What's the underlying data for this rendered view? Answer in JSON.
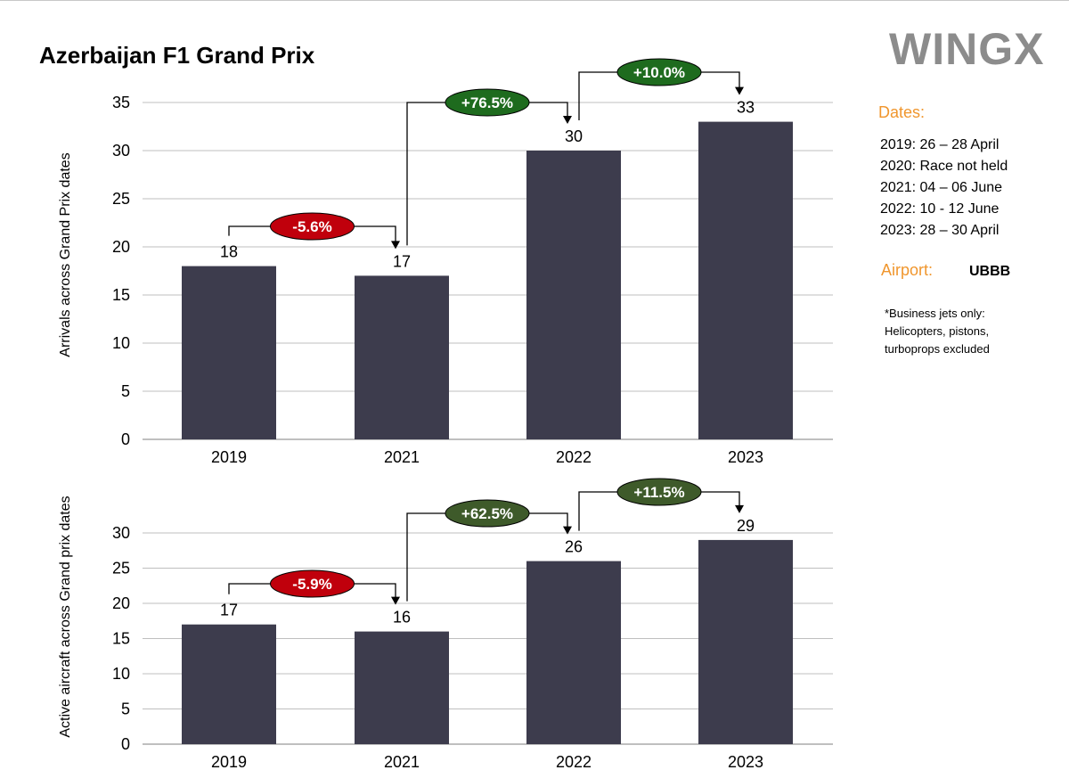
{
  "title": "Azerbaijan F1 Grand Prix",
  "logo": "WINGX",
  "sidebar": {
    "dates_label": "Dates:",
    "dates": [
      "2019: 26 – 28 April",
      "2020: Race not held",
      "2021: 04 – 06 June",
      "2022: 10 - 12 June",
      "2023: 28 – 30 April"
    ],
    "airport_label": "Airport:",
    "airport_code": "UBBB",
    "note": [
      "*Business jets only:",
      "Helicopters, pistons,",
      "turboprops excluded"
    ]
  },
  "colors": {
    "bar": "#3d3c4d",
    "grid": "#bfbfbf",
    "negative_badge": "#c0000c",
    "positive_badge_top": "#1e6b1e",
    "positive_badge_bottom": "#3e5a2a",
    "accent_orange": "#f0962d"
  },
  "chart_data": [
    {
      "type": "bar",
      "ylabel": "Arrivals across Grand Prix dates",
      "categories": [
        "2019",
        "2021",
        "2022",
        "2023"
      ],
      "values": [
        18,
        17,
        30,
        33
      ],
      "ylim": [
        0,
        35
      ],
      "yticks": [
        0,
        5,
        10,
        15,
        20,
        25,
        30,
        35
      ],
      "grid": true,
      "changes": [
        "-5.6%",
        "+76.5%",
        "+10.0%"
      ]
    },
    {
      "type": "bar",
      "ylabel": "Active aircraft across Grand prix dates",
      "categories": [
        "2019",
        "2021",
        "2022",
        "2023"
      ],
      "values": [
        17,
        16,
        26,
        29
      ],
      "ylim": [
        0,
        30
      ],
      "yticks": [
        0,
        5,
        10,
        15,
        20,
        25,
        30
      ],
      "grid": true,
      "changes": [
        "-5.9%",
        "+62.5%",
        "+11.5%"
      ]
    }
  ]
}
